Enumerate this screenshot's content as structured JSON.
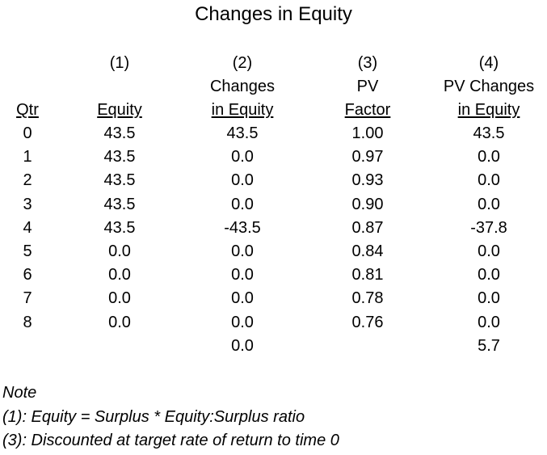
{
  "title": "Changes in Equity",
  "columns": [
    {
      "number": "",
      "label_line1": "",
      "label_line2": "Qtr"
    },
    {
      "number": "(1)",
      "label_line1": "",
      "label_line2": "Equity"
    },
    {
      "number": "(2)",
      "label_line1": "Changes",
      "label_line2": "in Equity"
    },
    {
      "number": "(3)",
      "label_line1": "PV",
      "label_line2": "Factor"
    },
    {
      "number": "(4)",
      "label_line1": "PV Changes",
      "label_line2": "in Equity"
    }
  ],
  "rows": [
    {
      "qtr": "0",
      "equity": "43.5",
      "changes": "43.5",
      "pv_factor": "1.00",
      "pv_changes": "43.5"
    },
    {
      "qtr": "1",
      "equity": "43.5",
      "changes": "0.0",
      "pv_factor": "0.97",
      "pv_changes": "0.0"
    },
    {
      "qtr": "2",
      "equity": "43.5",
      "changes": "0.0",
      "pv_factor": "0.93",
      "pv_changes": "0.0"
    },
    {
      "qtr": "3",
      "equity": "43.5",
      "changes": "0.0",
      "pv_factor": "0.90",
      "pv_changes": "0.0"
    },
    {
      "qtr": "4",
      "equity": "43.5",
      "changes": "-43.5",
      "pv_factor": "0.87",
      "pv_changes": "-37.8"
    },
    {
      "qtr": "5",
      "equity": "0.0",
      "changes": "0.0",
      "pv_factor": "0.84",
      "pv_changes": "0.0"
    },
    {
      "qtr": "6",
      "equity": "0.0",
      "changes": "0.0",
      "pv_factor": "0.81",
      "pv_changes": "0.0"
    },
    {
      "qtr": "7",
      "equity": "0.0",
      "changes": "0.0",
      "pv_factor": "0.78",
      "pv_changes": "0.0"
    },
    {
      "qtr": "8",
      "equity": "0.0",
      "changes": "0.0",
      "pv_factor": "0.76",
      "pv_changes": "0.0"
    }
  ],
  "totals": {
    "qtr": "",
    "equity": "",
    "changes": "0.0",
    "pv_factor": "",
    "pv_changes": "5.7"
  },
  "notes": {
    "heading": "Note",
    "line1": "(1): Equity = Surplus * Equity:Surplus ratio",
    "line2": "(3): Discounted at target rate of return to time 0"
  }
}
